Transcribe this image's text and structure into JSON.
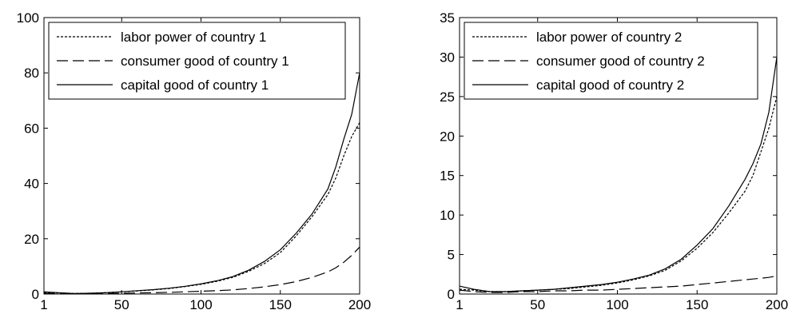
{
  "chart_data": [
    {
      "type": "line",
      "xlim": [
        1,
        200
      ],
      "ylim": [
        0,
        100
      ],
      "xticks": [
        "1",
        "50",
        "100",
        "150",
        "200"
      ],
      "yticks": [
        "0",
        "20",
        "40",
        "60",
        "80",
        "100"
      ],
      "xtick_values": [
        1,
        50,
        100,
        150,
        200
      ],
      "ytick_values": [
        0,
        20,
        40,
        60,
        80,
        100
      ],
      "grid": false,
      "legend_position": "top-left",
      "x": [
        1,
        10,
        20,
        30,
        40,
        50,
        60,
        70,
        80,
        90,
        100,
        110,
        120,
        130,
        140,
        150,
        160,
        170,
        180,
        185,
        190,
        195,
        200
      ],
      "series": [
        {
          "name": "labor power of country 1",
          "style": "dotted",
          "values": [
            0.6,
            0.4,
            0.2,
            0.3,
            0.5,
            0.8,
            1.1,
            1.5,
            2.0,
            2.7,
            3.5,
            4.6,
            6.0,
            8.2,
            11.0,
            15.0,
            21.0,
            28.0,
            36.0,
            42.0,
            50.0,
            57.0,
            62.0
          ]
        },
        {
          "name": "consumer good of country 1",
          "style": "dashed",
          "values": [
            0.3,
            0.2,
            0.1,
            0.1,
            0.2,
            0.3,
            0.4,
            0.5,
            0.6,
            0.8,
            1.0,
            1.2,
            1.5,
            2.0,
            2.6,
            3.4,
            4.5,
            6.0,
            8.0,
            9.5,
            11.5,
            14.0,
            17.0
          ]
        },
        {
          "name": "capital good of country 1",
          "style": "solid",
          "values": [
            0.8,
            0.5,
            0.2,
            0.3,
            0.5,
            0.8,
            1.2,
            1.6,
            2.1,
            2.8,
            3.7,
            4.8,
            6.3,
            8.6,
            11.8,
            16.0,
            22.0,
            29.0,
            38.0,
            46.0,
            56.0,
            65.0,
            80.0
          ]
        }
      ]
    },
    {
      "type": "line",
      "xlim": [
        1,
        200
      ],
      "ylim": [
        0,
        35
      ],
      "xticks": [
        "1",
        "50",
        "100",
        "150",
        "200"
      ],
      "yticks": [
        "0",
        "5",
        "10",
        "15",
        "20",
        "25",
        "30",
        "35"
      ],
      "xtick_values": [
        1,
        50,
        100,
        150,
        200
      ],
      "ytick_values": [
        0,
        5,
        10,
        15,
        20,
        25,
        30,
        35
      ],
      "grid": false,
      "legend_position": "top-left",
      "x": [
        1,
        10,
        20,
        30,
        40,
        50,
        60,
        70,
        80,
        90,
        100,
        110,
        120,
        130,
        140,
        150,
        160,
        170,
        180,
        185,
        190,
        195,
        200
      ],
      "series": [
        {
          "name": "labor power of country 2",
          "style": "dotted",
          "values": [
            0.6,
            0.5,
            0.3,
            0.3,
            0.4,
            0.5,
            0.6,
            0.7,
            0.9,
            1.1,
            1.4,
            1.8,
            2.3,
            3.0,
            4.2,
            5.8,
            7.8,
            10.3,
            13.0,
            15.0,
            18.0,
            21.0,
            25.0
          ]
        },
        {
          "name": "consumer good of country 2",
          "style": "dashed",
          "values": [
            0.5,
            0.3,
            0.2,
            0.2,
            0.3,
            0.3,
            0.4,
            0.4,
            0.5,
            0.5,
            0.6,
            0.7,
            0.8,
            0.9,
            1.0,
            1.2,
            1.4,
            1.6,
            1.8,
            1.9,
            2.0,
            2.1,
            2.3
          ]
        },
        {
          "name": "capital good of country 2",
          "style": "solid",
          "values": [
            1.0,
            0.6,
            0.3,
            0.3,
            0.4,
            0.5,
            0.6,
            0.8,
            1.0,
            1.2,
            1.5,
            1.9,
            2.4,
            3.2,
            4.4,
            6.2,
            8.3,
            11.2,
            14.5,
            16.5,
            19.0,
            23.0,
            30.0
          ]
        }
      ]
    }
  ]
}
